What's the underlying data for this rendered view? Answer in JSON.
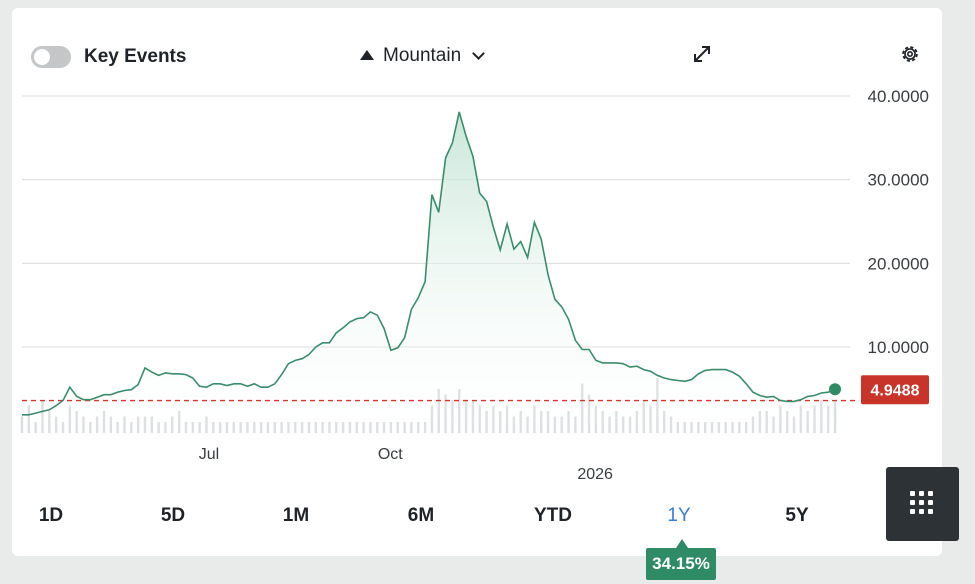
{
  "toolbar": {
    "key_events_label": "Key Events",
    "key_events_enabled": false,
    "chart_type_label": "Mountain",
    "chart_type_icon": "mountain-icon",
    "expand_icon": "expand-icon",
    "settings_icon": "gear-icon"
  },
  "current_value_label": "4.9488",
  "ranges": [
    {
      "label": "1D",
      "active": false
    },
    {
      "label": "5D",
      "active": false
    },
    {
      "label": "1M",
      "active": false
    },
    {
      "label": "6M",
      "active": false
    },
    {
      "label": "YTD",
      "active": false
    },
    {
      "label": "1Y",
      "active": true
    },
    {
      "label": "5Y",
      "active": false
    }
  ],
  "change_badge": "34.15%",
  "colors": {
    "line": "#3a8d6c",
    "fill": "#cfe8dc",
    "reference_line": "#d9362b",
    "price_badge": "#c8332a",
    "change_badge": "#2f8a66",
    "active_range": "#3b7be0"
  },
  "chart_data": {
    "type": "area",
    "title": "",
    "xlabel": "",
    "ylabel": "",
    "ylim": [
      0,
      40
    ],
    "y_ticks": [
      "40.0000",
      "30.0000",
      "20.0000",
      "10.0000"
    ],
    "y_tick_values": [
      40,
      30,
      20,
      10
    ],
    "x_ticks": [
      {
        "label": "Jul",
        "at": 0.23
      },
      {
        "label": "Oct",
        "at": 0.453
      },
      {
        "label": "2026",
        "at": 0.705
      }
    ],
    "reference_value": 3.6,
    "last_value": 4.9488,
    "series": [
      {
        "values": [
          1.9,
          1.9,
          2.1,
          2.3,
          2.5,
          3.0,
          3.6,
          5.2,
          4.1,
          3.7,
          3.7,
          4.0,
          4.3,
          4.3,
          4.6,
          4.8,
          4.9,
          5.5,
          7.5,
          7.0,
          6.6,
          6.9,
          6.8,
          6.8,
          6.7,
          6.3,
          5.3,
          5.2,
          5.6,
          5.6,
          5.4,
          5.6,
          5.6,
          5.3,
          5.6,
          5.2,
          5.2,
          5.6,
          6.7,
          8.0,
          8.4,
          8.6,
          9.1,
          10.0,
          10.5,
          10.5,
          11.7,
          12.3,
          13.0,
          13.4,
          13.5,
          14.2,
          13.8,
          12.2,
          9.6,
          9.9,
          11.1,
          14.5,
          15.9,
          17.8,
          28.2,
          26.1,
          32.6,
          34.4,
          38.1,
          35.2,
          32.8,
          28.4,
          27.4,
          24.3,
          21.6,
          24.7,
          21.7,
          22.6,
          20.7,
          24.9,
          22.9,
          18.6,
          15.7,
          14.8,
          13.3,
          10.8,
          9.7,
          9.7,
          8.4,
          8.1,
          8.1,
          8.1,
          8.0,
          7.6,
          7.7,
          7.3,
          7.1,
          6.6,
          6.3,
          6.1,
          6.0,
          5.9,
          6.1,
          6.8,
          7.2,
          7.3,
          7.3,
          7.3,
          7.0,
          6.5,
          5.6,
          4.6,
          4.2,
          4.0,
          4.1,
          3.6,
          3.5,
          3.5,
          3.7,
          4.1,
          4.2,
          4.5,
          4.6,
          4.9488
        ]
      }
    ],
    "volume": [
      0.3,
      0.5,
      0.2,
      0.6,
      0.4,
      0.3,
      0.2,
      0.5,
      0.4,
      0.3,
      0.2,
      0.3,
      0.4,
      0.3,
      0.2,
      0.3,
      0.2,
      0.3,
      0.3,
      0.3,
      0.2,
      0.2,
      0.3,
      0.4,
      0.2,
      0.2,
      0.2,
      0.3,
      0.2,
      0.2,
      0.2,
      0.2,
      0.2,
      0.2,
      0.2,
      0.2,
      0.2,
      0.2,
      0.2,
      0.2,
      0.2,
      0.2,
      0.2,
      0.2,
      0.2,
      0.2,
      0.2,
      0.2,
      0.2,
      0.2,
      0.2,
      0.2,
      0.2,
      0.2,
      0.2,
      0.2,
      0.2,
      0.2,
      0.2,
      0.2,
      0.5,
      0.8,
      0.7,
      0.6,
      0.8,
      0.6,
      0.6,
      0.5,
      0.4,
      0.5,
      0.4,
      0.5,
      0.3,
      0.4,
      0.3,
      0.5,
      0.4,
      0.4,
      0.3,
      0.3,
      0.4,
      0.3,
      0.9,
      0.7,
      0.5,
      0.4,
      0.3,
      0.4,
      0.3,
      0.3,
      0.4,
      0.6,
      0.5,
      1.0,
      0.4,
      0.3,
      0.2,
      0.2,
      0.2,
      0.2,
      0.2,
      0.2,
      0.2,
      0.2,
      0.2,
      0.2,
      0.2,
      0.3,
      0.4,
      0.4,
      0.3,
      0.5,
      0.4,
      0.3,
      0.5,
      0.4,
      0.5,
      0.6,
      0.5,
      0.6
    ]
  }
}
